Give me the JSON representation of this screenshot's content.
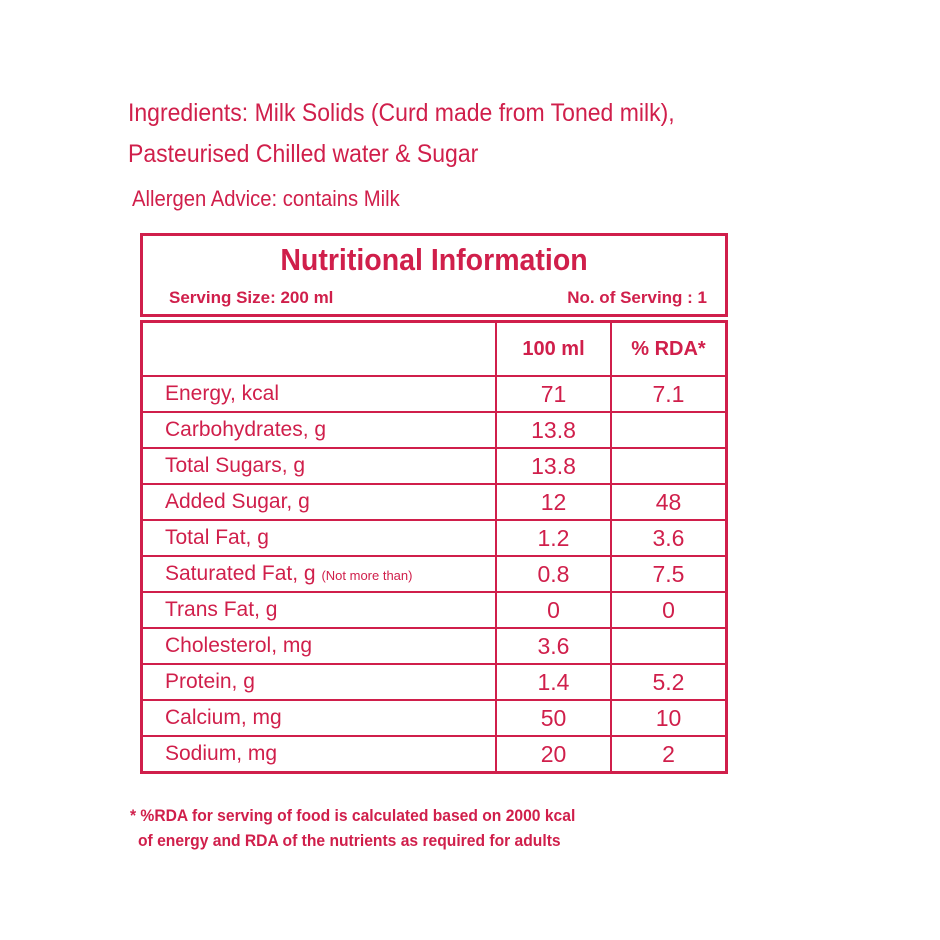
{
  "ingredients": {
    "line1": "Ingredients: Milk Solids (Curd made from Toned milk),",
    "line2": "Pasteurised Chilled water & Sugar"
  },
  "allergen": "Allergen Advice: contains Milk",
  "panel": {
    "title": "Nutritional Information",
    "serving_size": "Serving Size:  200 ml",
    "servings": "No. of Serving : 1"
  },
  "table": {
    "headers": [
      "",
      "100 ml",
      "% RDA*"
    ],
    "rows": [
      {
        "name": "Energy, kcal",
        "note": "",
        "per100": "71",
        "rda": "7.1"
      },
      {
        "name": "Carbohydrates, g",
        "note": "",
        "per100": "13.8",
        "rda": ""
      },
      {
        "name": "Total Sugars, g",
        "note": "",
        "per100": "13.8",
        "rda": ""
      },
      {
        "name": "Added Sugar, g",
        "note": "",
        "per100": "12",
        "rda": "48"
      },
      {
        "name": "Total Fat, g",
        "note": "",
        "per100": "1.2",
        "rda": "3.6"
      },
      {
        "name": "Saturated Fat, g",
        "note": "(Not more than)",
        "per100": "0.8",
        "rda": "7.5"
      },
      {
        "name": "Trans Fat, g",
        "note": "",
        "per100": "0",
        "rda": "0"
      },
      {
        "name": "Cholesterol, mg",
        "note": "",
        "per100": "3.6",
        "rda": ""
      },
      {
        "name": "Protein, g",
        "note": "",
        "per100": "1.4",
        "rda": "5.2"
      },
      {
        "name": "Calcium, mg",
        "note": "",
        "per100": "50",
        "rda": "10"
      },
      {
        "name": "Sodium, mg",
        "note": "",
        "per100": "20",
        "rda": "2"
      }
    ]
  },
  "footnote": {
    "line1": "* %RDA  for serving of food is calculated based on 2000 kcal",
    "line2": "of energy and RDA of the nutrients as required for adults"
  },
  "colors": {
    "ink": "#d01f4b"
  }
}
